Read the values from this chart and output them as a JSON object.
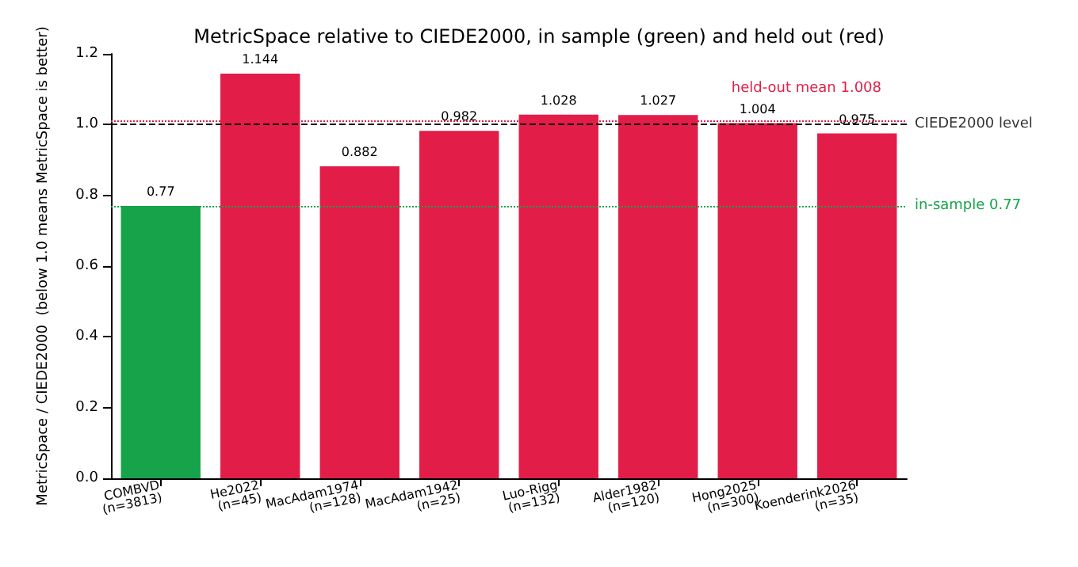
{
  "chart_data": {
    "type": "bar",
    "title": "MetricSpace relative to CIEDE2000, in sample (green) and held out (red)",
    "ylabel": "MetricSpace / CIEDE2000  (below 1.0 means MetricSpace is better)",
    "categories": [
      "COMBVD\n(n=3813)",
      "He2022\n(n=45)",
      "MacAdam1974\n(n=128)",
      "MacAdam1942\n(n=25)",
      "Luo-Rigg\n(n=132)",
      "Alder1982\n(n=120)",
      "Hong2025\n(n=300)",
      "Koenderink2026\n(n=35)"
    ],
    "values": [
      0.77,
      1.144,
      0.882,
      0.982,
      1.028,
      1.027,
      1.004,
      0.975
    ],
    "colors": [
      "#16a34a",
      "#e11d48",
      "#e11d48",
      "#e11d48",
      "#e11d48",
      "#e11d48",
      "#e11d48",
      "#e11d48"
    ],
    "data_labels": true,
    "ylim": [
      0,
      1.2
    ],
    "yticks": [
      {
        "value": 0,
        "label": "0.0"
      },
      0.2,
      0.4,
      0.6,
      0.8,
      {
        "value": 1,
        "label": "1.0"
      },
      1.2
    ],
    "ref_lines": [
      {
        "axis": "y",
        "value": 1.0,
        "label": "CIEDE2000 level",
        "color": "#000000",
        "line_style": "dashed"
      },
      {
        "axis": "y",
        "value": 1.008,
        "label": "held-out mean 1.008",
        "color": "#e11d48",
        "line_style": "dotted"
      },
      {
        "axis": "y",
        "value": 0.77,
        "label": "in-sample 0.77",
        "color": "#16a34a",
        "line_style": "dotted"
      }
    ],
    "grid": false
  }
}
